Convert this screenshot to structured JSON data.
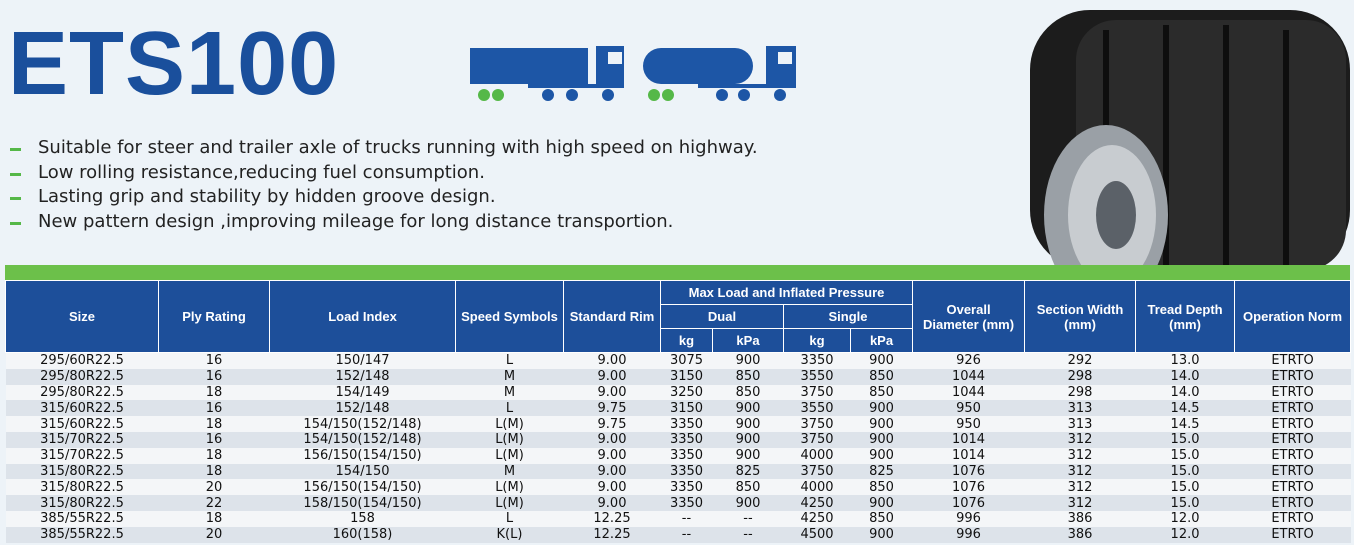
{
  "header": {
    "title": "ETS100"
  },
  "features": [
    "Suitable for steer and trailer axle of trucks running with high speed on highway.",
    "Low rolling resistance,reducing fuel consumption.",
    "Lasting grip and stability by hidden groove design.",
    "New pattern design ,improving mileage for long distance transportion."
  ],
  "table": {
    "columns_left": [
      "Size",
      "Ply Rating",
      "Load Index",
      "Speed Symbols",
      "Standard Rim"
    ],
    "group": "Max Load and Inflated Pressure",
    "subgroups": [
      "Dual",
      "Single"
    ],
    "units": [
      "kg",
      "kPa",
      "kg",
      "kPa"
    ],
    "columns_right": [
      "Overall Diameter (mm)",
      "Section Width (mm)",
      "Tread Depth (mm)",
      "Operation Norm"
    ],
    "rows": [
      [
        "295/60R22.5",
        "16",
        "150/147",
        "L",
        "9.00",
        "3075",
        "900",
        "3350",
        "900",
        "926",
        "292",
        "13.0",
        "ETRTO"
      ],
      [
        "295/80R22.5",
        "16",
        "152/148",
        "M",
        "9.00",
        "3150",
        "850",
        "3550",
        "850",
        "1044",
        "298",
        "14.0",
        "ETRTO"
      ],
      [
        "295/80R22.5",
        "18",
        "154/149",
        "M",
        "9.00",
        "3250",
        "850",
        "3750",
        "850",
        "1044",
        "298",
        "14.0",
        "ETRTO"
      ],
      [
        "315/60R22.5",
        "16",
        "152/148",
        "L",
        "9.75",
        "3150",
        "900",
        "3550",
        "900",
        "950",
        "313",
        "14.5",
        "ETRTO"
      ],
      [
        "315/60R22.5",
        "18",
        "154/150(152/148)",
        "L(M)",
        "9.75",
        "3350",
        "900",
        "3750",
        "900",
        "950",
        "313",
        "14.5",
        "ETRTO"
      ],
      [
        "315/70R22.5",
        "16",
        "154/150(152/148)",
        "L(M)",
        "9.00",
        "3350",
        "900",
        "3750",
        "900",
        "1014",
        "312",
        "15.0",
        "ETRTO"
      ],
      [
        "315/70R22.5",
        "18",
        "156/150(154/150)",
        "L(M)",
        "9.00",
        "3350",
        "900",
        "4000",
        "900",
        "1014",
        "312",
        "15.0",
        "ETRTO"
      ],
      [
        "315/80R22.5",
        "18",
        "154/150",
        "M",
        "9.00",
        "3350",
        "825",
        "3750",
        "825",
        "1076",
        "312",
        "15.0",
        "ETRTO"
      ],
      [
        "315/80R22.5",
        "20",
        "156/150(154/150)",
        "L(M)",
        "9.00",
        "3350",
        "850",
        "4000",
        "850",
        "1076",
        "312",
        "15.0",
        "ETRTO"
      ],
      [
        "315/80R22.5",
        "22",
        "158/150(154/150)",
        "L(M)",
        "9.00",
        "3350",
        "900",
        "4250",
        "900",
        "1076",
        "312",
        "15.0",
        "ETRTO"
      ],
      [
        "385/55R22.5",
        "18",
        "158",
        "L",
        "12.25",
        "--",
        "--",
        "4250",
        "850",
        "996",
        "386",
        "12.0",
        "ETRTO"
      ],
      [
        "385/55R22.5",
        "20",
        "160(158)",
        "K(L)",
        "12.25",
        "--",
        "--",
        "4500",
        "900",
        "996",
        "386",
        "12.0",
        "ETRTO"
      ]
    ]
  }
}
